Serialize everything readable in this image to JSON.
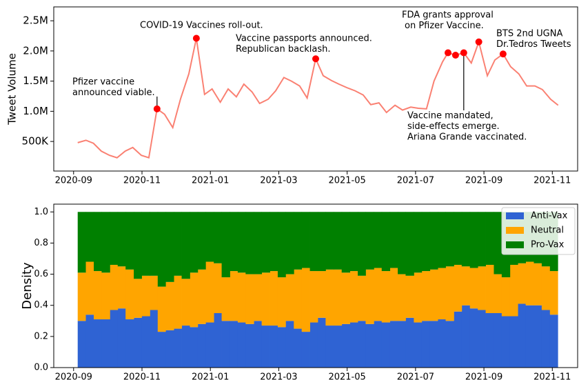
{
  "chart_data": [
    {
      "type": "line",
      "ylabel": "Tweet Volume",
      "xlim": [
        -0.58,
        14.74
      ],
      "ylim": [
        10000,
        2730000
      ],
      "xticks": [
        {
          "value": 0,
          "label": "2020-09"
        },
        {
          "value": 2,
          "label": "2020-11"
        },
        {
          "value": 4,
          "label": "2021-01"
        },
        {
          "value": 6,
          "label": "2021-03"
        },
        {
          "value": 8,
          "label": "2021-05"
        },
        {
          "value": 10,
          "label": "2021-07"
        },
        {
          "value": 12,
          "label": "2021-09"
        },
        {
          "value": 14,
          "label": "2021-11"
        }
      ],
      "yticks": [
        {
          "value": 500000,
          "label": "500K"
        },
        {
          "value": 1000000,
          "label": "1.0M"
        },
        {
          "value": 1500000,
          "label": "1.5M"
        },
        {
          "value": 2000000,
          "label": "2.0M"
        },
        {
          "value": 2500000,
          "label": "2.5M"
        }
      ],
      "x": [
        0.12,
        0.36,
        0.58,
        0.81,
        1.05,
        1.27,
        1.51,
        1.73,
        1.98,
        2.2,
        2.44,
        2.66,
        2.9,
        3.13,
        3.37,
        3.59,
        3.83,
        4.05,
        4.29,
        4.52,
        4.76,
        4.98,
        5.22,
        5.44,
        5.69,
        5.91,
        6.15,
        6.37,
        6.61,
        6.83,
        7.08,
        7.3,
        7.54,
        7.76,
        8.0,
        8.23,
        8.47,
        8.69,
        8.93,
        9.15,
        9.4,
        9.62,
        9.86,
        10.08,
        10.32,
        10.54,
        10.79,
        10.95,
        11.17,
        11.41,
        11.63,
        11.85,
        12.1,
        12.32,
        12.56,
        12.78,
        13.02,
        13.25,
        13.49,
        13.71,
        13.95,
        14.17
      ],
      "series": [
        {
          "color": "#fa8072",
          "values": [
            480000,
            520000,
            470000,
            340000,
            270000,
            230000,
            340000,
            400000,
            270000,
            230000,
            1040000,
            950000,
            730000,
            1210000,
            1620000,
            2210000,
            1280000,
            1370000,
            1150000,
            1370000,
            1240000,
            1450000,
            1320000,
            1130000,
            1200000,
            1340000,
            1560000,
            1500000,
            1420000,
            1220000,
            1870000,
            1590000,
            1510000,
            1450000,
            1390000,
            1340000,
            1270000,
            1110000,
            1140000,
            980000,
            1100000,
            1020000,
            1070000,
            1050000,
            1040000,
            1500000,
            1820000,
            1970000,
            1930000,
            1970000,
            1800000,
            2150000,
            1590000,
            1850000,
            1950000,
            1740000,
            1620000,
            1420000,
            1420000,
            1360000,
            1200000,
            1100000
          ]
        }
      ],
      "events": {
        "color": "#ff0000",
        "x": [
          2.44,
          3.59,
          7.08,
          10.95,
          11.17,
          11.41,
          11.85,
          12.56
        ],
        "values": [
          1040000,
          2210000,
          1870000,
          1970000,
          1930000,
          1970000,
          2150000,
          1950000
        ]
      },
      "annotations": [
        {
          "lines": [
            "Pfizer vaccine",
            "announced viable."
          ]
        },
        {
          "lines": [
            "COVID-19 Vaccines roll-out."
          ]
        },
        {
          "lines": [
            "Vaccine passports announced.",
            "Republican backlash."
          ]
        },
        {
          "lines": [
            "FDA grants approval",
            "on Pfizer Vaccine."
          ]
        },
        {
          "lines": [
            "BTS 2nd UGNA",
            "Dr.Tedros Tweets"
          ]
        },
        {
          "lines": [
            "Vaccine mandated,",
            "side-effects emerge.",
            "Ariana Grande vaccinated."
          ]
        }
      ]
    },
    {
      "type": "stacked_histogram",
      "ylabel": "Density",
      "legend": "upper right",
      "xlim": [
        -0.58,
        14.74
      ],
      "ylim": [
        0,
        1.05
      ],
      "xticks": [
        {
          "value": 0,
          "label": "2020-09"
        },
        {
          "value": 2,
          "label": "2020-11"
        },
        {
          "value": 4,
          "label": "2021-01"
        },
        {
          "value": 6,
          "label": "2021-03"
        },
        {
          "value": 8,
          "label": "2021-05"
        },
        {
          "value": 10,
          "label": "2021-07"
        },
        {
          "value": 12,
          "label": "2021-09"
        },
        {
          "value": 14,
          "label": "2021-11"
        }
      ],
      "yticks": [
        {
          "value": 0,
          "label": "0.0"
        },
        {
          "value": 0.2,
          "label": "0.2"
        },
        {
          "value": 0.4,
          "label": "0.4"
        },
        {
          "value": 0.6,
          "label": "0.6"
        },
        {
          "value": 0.8,
          "label": "0.8"
        },
        {
          "value": 1,
          "label": "1.0"
        }
      ],
      "bins": [
        0.12,
        0.35,
        0.59,
        0.82,
        1.06,
        1.29,
        1.52,
        1.76,
        1.99,
        2.23,
        2.46,
        2.69,
        2.93,
        3.16,
        3.4,
        3.63,
        3.86,
        4.1,
        4.33,
        4.57,
        4.8,
        5.03,
        5.27,
        5.5,
        5.74,
        5.97,
        6.2,
        6.44,
        6.67,
        6.91,
        7.14,
        7.37,
        7.61,
        7.84,
        8.08,
        8.31,
        8.54,
        8.78,
        9.01,
        9.25,
        9.48,
        9.71,
        9.95,
        10.18,
        10.42,
        10.65,
        10.88,
        11.12,
        11.35,
        11.59,
        11.82,
        12.05,
        12.29,
        12.52,
        12.76,
        12.99,
        13.22,
        13.46,
        13.69,
        13.93,
        14.16
      ],
      "series": [
        {
          "name": "Anti-Vax",
          "color": "#2f63d3",
          "values": [
            0.3,
            0.34,
            0.31,
            0.31,
            0.37,
            0.38,
            0.31,
            0.32,
            0.33,
            0.37,
            0.23,
            0.24,
            0.25,
            0.27,
            0.26,
            0.28,
            0.29,
            0.35,
            0.3,
            0.3,
            0.29,
            0.28,
            0.3,
            0.27,
            0.27,
            0.26,
            0.3,
            0.25,
            0.23,
            0.29,
            0.32,
            0.27,
            0.27,
            0.28,
            0.29,
            0.3,
            0.28,
            0.3,
            0.29,
            0.3,
            0.3,
            0.32,
            0.29,
            0.3,
            0.3,
            0.31,
            0.3,
            0.36,
            0.4,
            0.38,
            0.37,
            0.35,
            0.35,
            0.33,
            0.33,
            0.41,
            0.4,
            0.4,
            0.37,
            0.34
          ]
        },
        {
          "name": "Neutral",
          "color": "#ffa500",
          "values": [
            0.31,
            0.34,
            0.31,
            0.3,
            0.29,
            0.27,
            0.32,
            0.25,
            0.26,
            0.22,
            0.29,
            0.31,
            0.34,
            0.3,
            0.35,
            0.35,
            0.39,
            0.32,
            0.28,
            0.32,
            0.32,
            0.32,
            0.3,
            0.34,
            0.35,
            0.32,
            0.3,
            0.38,
            0.41,
            0.33,
            0.3,
            0.36,
            0.36,
            0.33,
            0.33,
            0.29,
            0.35,
            0.34,
            0.33,
            0.34,
            0.3,
            0.27,
            0.32,
            0.32,
            0.33,
            0.33,
            0.35,
            0.3,
            0.25,
            0.26,
            0.28,
            0.31,
            0.25,
            0.25,
            0.33,
            0.26,
            0.28,
            0.27,
            0.28,
            0.28
          ]
        },
        {
          "name": "Pro-Vax",
          "color": "#008000",
          "values": [
            0.39,
            0.32,
            0.38,
            0.39,
            0.34,
            0.35,
            0.37,
            0.43,
            0.41,
            0.41,
            0.48,
            0.45,
            0.41,
            0.43,
            0.39,
            0.37,
            0.32,
            0.33,
            0.42,
            0.38,
            0.39,
            0.4,
            0.4,
            0.39,
            0.38,
            0.42,
            0.4,
            0.37,
            0.36,
            0.38,
            0.38,
            0.37,
            0.37,
            0.39,
            0.38,
            0.41,
            0.37,
            0.36,
            0.38,
            0.36,
            0.4,
            0.41,
            0.39,
            0.38,
            0.37,
            0.36,
            0.35,
            0.34,
            0.35,
            0.36,
            0.35,
            0.34,
            0.4,
            0.42,
            0.34,
            0.33,
            0.32,
            0.33,
            0.35,
            0.38
          ]
        }
      ]
    }
  ]
}
